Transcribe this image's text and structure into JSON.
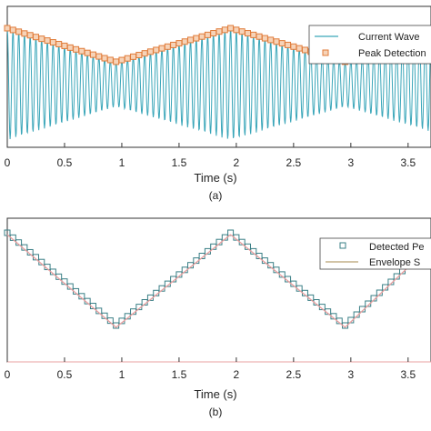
{
  "chart_data": [
    {
      "type": "line",
      "caption": "(a)",
      "xlabel": "Time (s)",
      "ylabel": "",
      "xlim": [
        0,
        3.7
      ],
      "x_ticks": [
        "0",
        "0.5",
        "1",
        "1.5",
        "2",
        "2.5",
        "3",
        "3.5"
      ],
      "grid": false,
      "legend_position": "top-right",
      "series": [
        {
          "name": "Current Wave",
          "kind": "oscillating line",
          "color": "#3aa6b9",
          "cycles_per_second": 20,
          "envelope": {
            "x": [
              0,
              0.95,
              1.95,
              2.95,
              3.7
            ],
            "y": [
              1.0,
              0.4,
              1.0,
              0.4,
              0.85
            ]
          }
        },
        {
          "name": "Peak Detection",
          "kind": "markers",
          "marker": "square",
          "color": "#e07b39",
          "x_step": 0.05,
          "envelope": {
            "x": [
              0,
              0.95,
              1.95,
              2.95,
              3.7
            ],
            "y": [
              1.0,
              0.4,
              1.0,
              0.4,
              0.85
            ]
          }
        }
      ]
    },
    {
      "type": "line",
      "caption": "(b)",
      "xlabel": "Time (s)",
      "ylabel": "",
      "xlim": [
        0,
        3.7
      ],
      "x_ticks": [
        "0",
        "0.5",
        "1",
        "1.5",
        "2",
        "2.5",
        "3",
        "3.5"
      ],
      "grid": false,
      "legend_position": "top-right",
      "series": [
        {
          "name": "Detected Pe",
          "kind": "markers",
          "marker": "square",
          "color": "#3a7f86",
          "x_step": 0.05,
          "envelope": {
            "x": [
              0,
              0.95,
              1.95,
              2.95,
              3.7
            ],
            "y": [
              1.0,
              0.15,
              1.0,
              0.15,
              0.9
            ]
          }
        },
        {
          "name": "Envelope S",
          "kind": "line",
          "color": "#e8a0a0",
          "envelope": {
            "x": [
              0,
              0.95,
              1.95,
              2.95,
              3.7
            ],
            "y": [
              1.0,
              0.15,
              1.0,
              0.15,
              0.9
            ]
          }
        }
      ]
    }
  ]
}
